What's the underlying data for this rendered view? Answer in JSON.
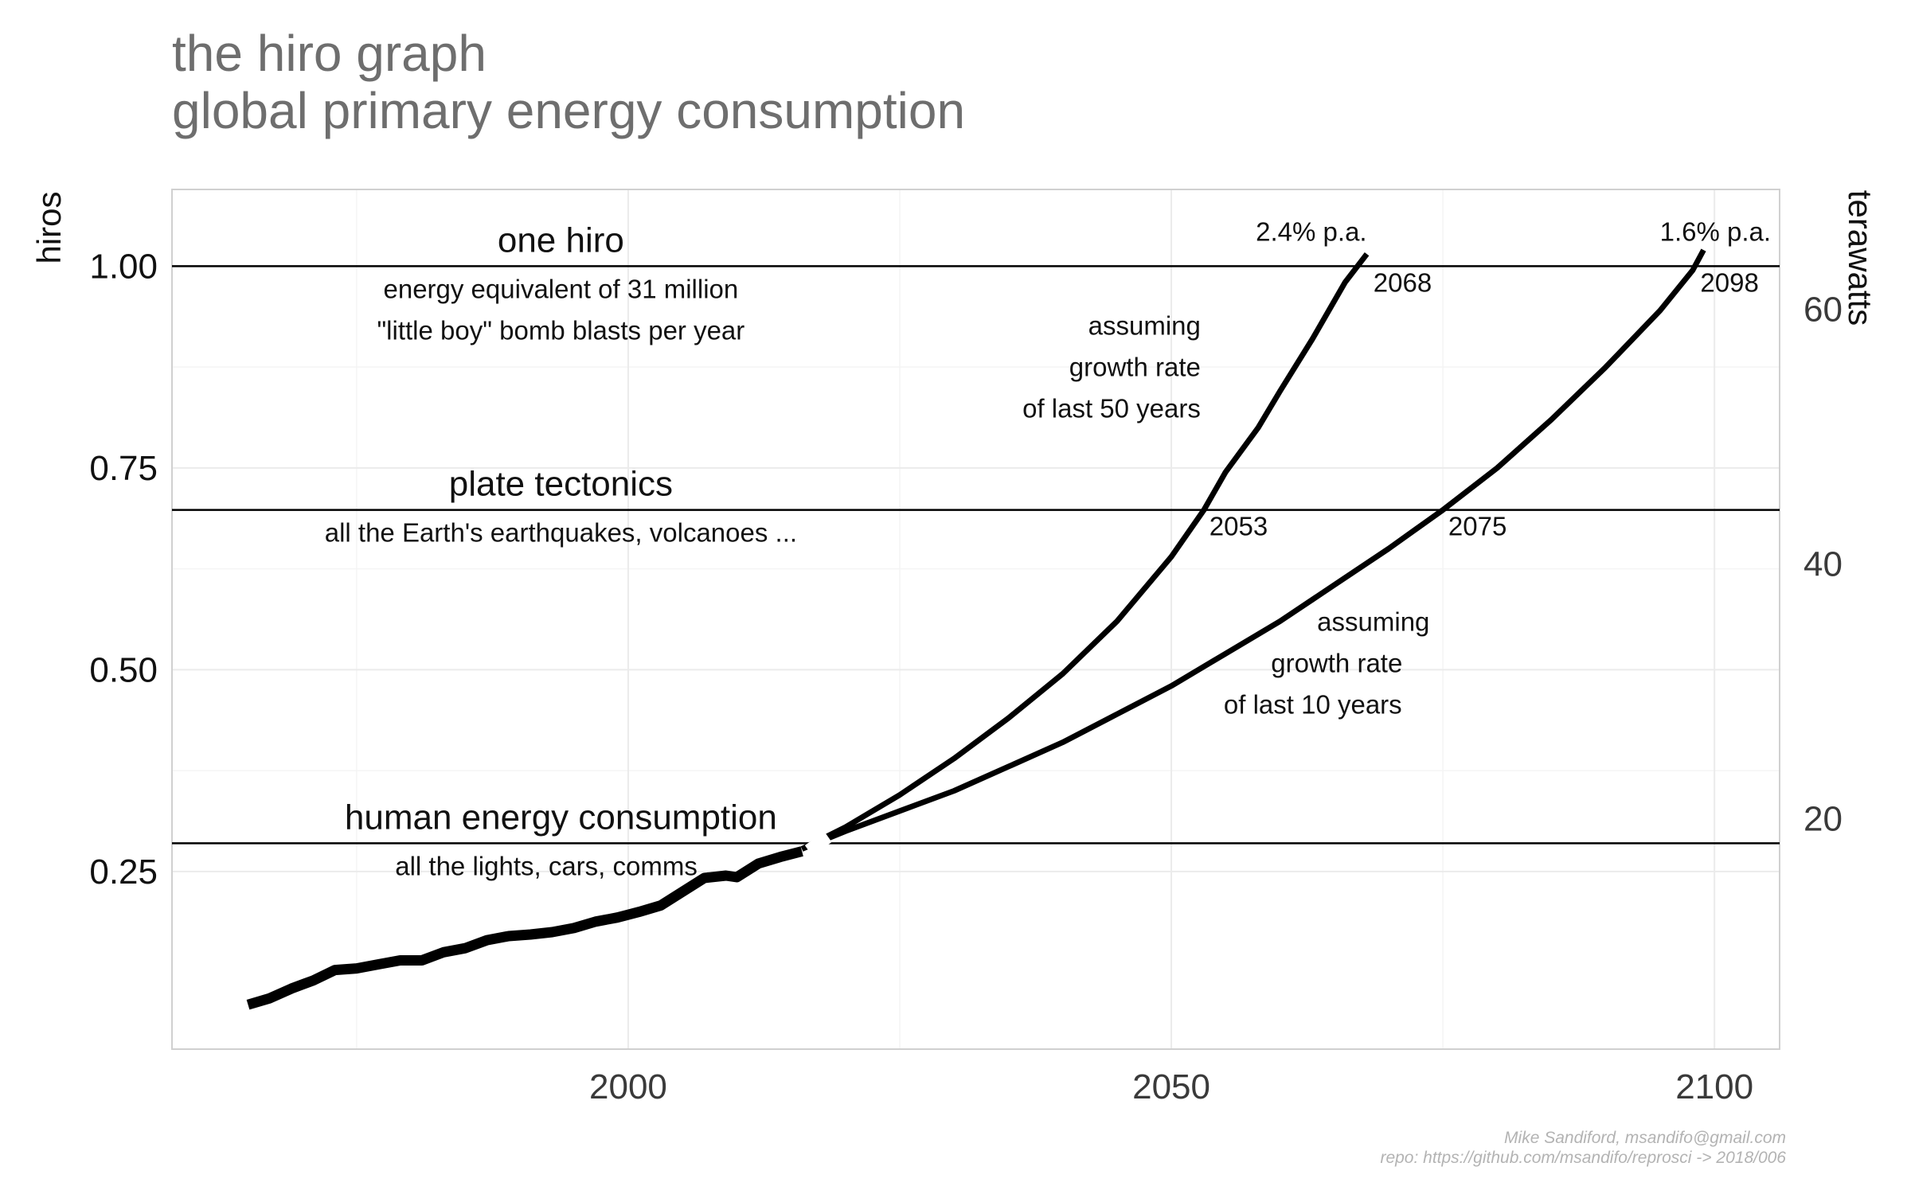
{
  "title_line1": "the hiro graph",
  "title_line2": "global primary energy consumption",
  "caption_line1": "Mike Sandiford, msandifo@gmail.com",
  "caption_line2": "repo: https://github.com/msandifo/reprosci -> 2018/006",
  "chart_data": {
    "type": "line",
    "xlim": [
      1958,
      2106
    ],
    "ylim": [
      0.03,
      1.095
    ],
    "x_ticks": [
      2000,
      2050,
      2100
    ],
    "x_tick_labels": [
      "2000",
      "2050",
      "2100"
    ],
    "y_ticks": [
      0.25,
      0.5,
      0.75,
      1.0
    ],
    "y_tick_labels": [
      "0.25",
      "0.50",
      "0.75",
      "1.00"
    ],
    "ylabel": "hiros",
    "ylabel_right": "terawatts",
    "y2_ticks": [
      20,
      40,
      60
    ],
    "y2_tick_labels": [
      "20",
      "40",
      "60"
    ],
    "terawatts_per_hiro": 63.4,
    "grid": true,
    "colors": {
      "line": "#000000",
      "grid": "#ebebeb",
      "axis_text": "#111111",
      "title": "#6e6e6e"
    },
    "reference_lines": [
      {
        "y": 1.0,
        "label": "one hiro",
        "notes": [
          "energy equivalent of 31 million",
          "\"little boy\" bomb blasts per year"
        ]
      },
      {
        "y": 0.698,
        "label": "plate tectonics",
        "notes": [
          "all the Earth's earthquakes, volcanoes ..."
        ]
      },
      {
        "y": 0.285,
        "label": "human energy consumption",
        "notes": [
          "all the lights, cars, comms ..."
        ]
      }
    ],
    "series": [
      {
        "kind": "historical",
        "x": [
          1965,
          1967,
          1969,
          1971,
          1973,
          1975,
          1977,
          1979,
          1981,
          1983,
          1985,
          1987,
          1989,
          1991,
          1993,
          1995,
          1997,
          1999,
          2001,
          2003,
          2005,
          2007,
          2009,
          2010,
          2012,
          2014,
          2016
        ],
        "y": [
          0.085,
          0.093,
          0.105,
          0.115,
          0.128,
          0.13,
          0.135,
          0.14,
          0.14,
          0.15,
          0.155,
          0.165,
          0.17,
          0.172,
          0.175,
          0.18,
          0.188,
          0.193,
          0.2,
          0.208,
          0.225,
          0.242,
          0.245,
          0.243,
          0.26,
          0.268,
          0.275
        ]
      },
      {
        "kind": "projection",
        "rate": "2.4% p.a.",
        "crossings": [
          "2053",
          "2068"
        ],
        "notes": [
          "assuming",
          "growth rate",
          "of last 50 years"
        ],
        "x": [
          2016,
          2020,
          2025,
          2030,
          2035,
          2040,
          2045,
          2050,
          2053,
          2055,
          2058,
          2060,
          2063,
          2066,
          2068
        ],
        "y": [
          0.278,
          0.305,
          0.345,
          0.39,
          0.44,
          0.495,
          0.56,
          0.64,
          0.698,
          0.745,
          0.8,
          0.845,
          0.91,
          0.98,
          1.015
        ]
      },
      {
        "kind": "projection",
        "rate": "1.6% p.a.",
        "crossings": [
          "2075",
          "2098"
        ],
        "notes": [
          "assuming",
          "growth rate",
          "of last 10 years"
        ],
        "x": [
          2016,
          2020,
          2025,
          2030,
          2035,
          2040,
          2045,
          2050,
          2055,
          2060,
          2065,
          2070,
          2075,
          2080,
          2085,
          2090,
          2095,
          2098,
          2099
        ],
        "y": [
          0.278,
          0.3,
          0.325,
          0.35,
          0.38,
          0.41,
          0.445,
          0.48,
          0.52,
          0.56,
          0.605,
          0.65,
          0.698,
          0.75,
          0.81,
          0.875,
          0.945,
          0.995,
          1.02
        ]
      }
    ]
  }
}
